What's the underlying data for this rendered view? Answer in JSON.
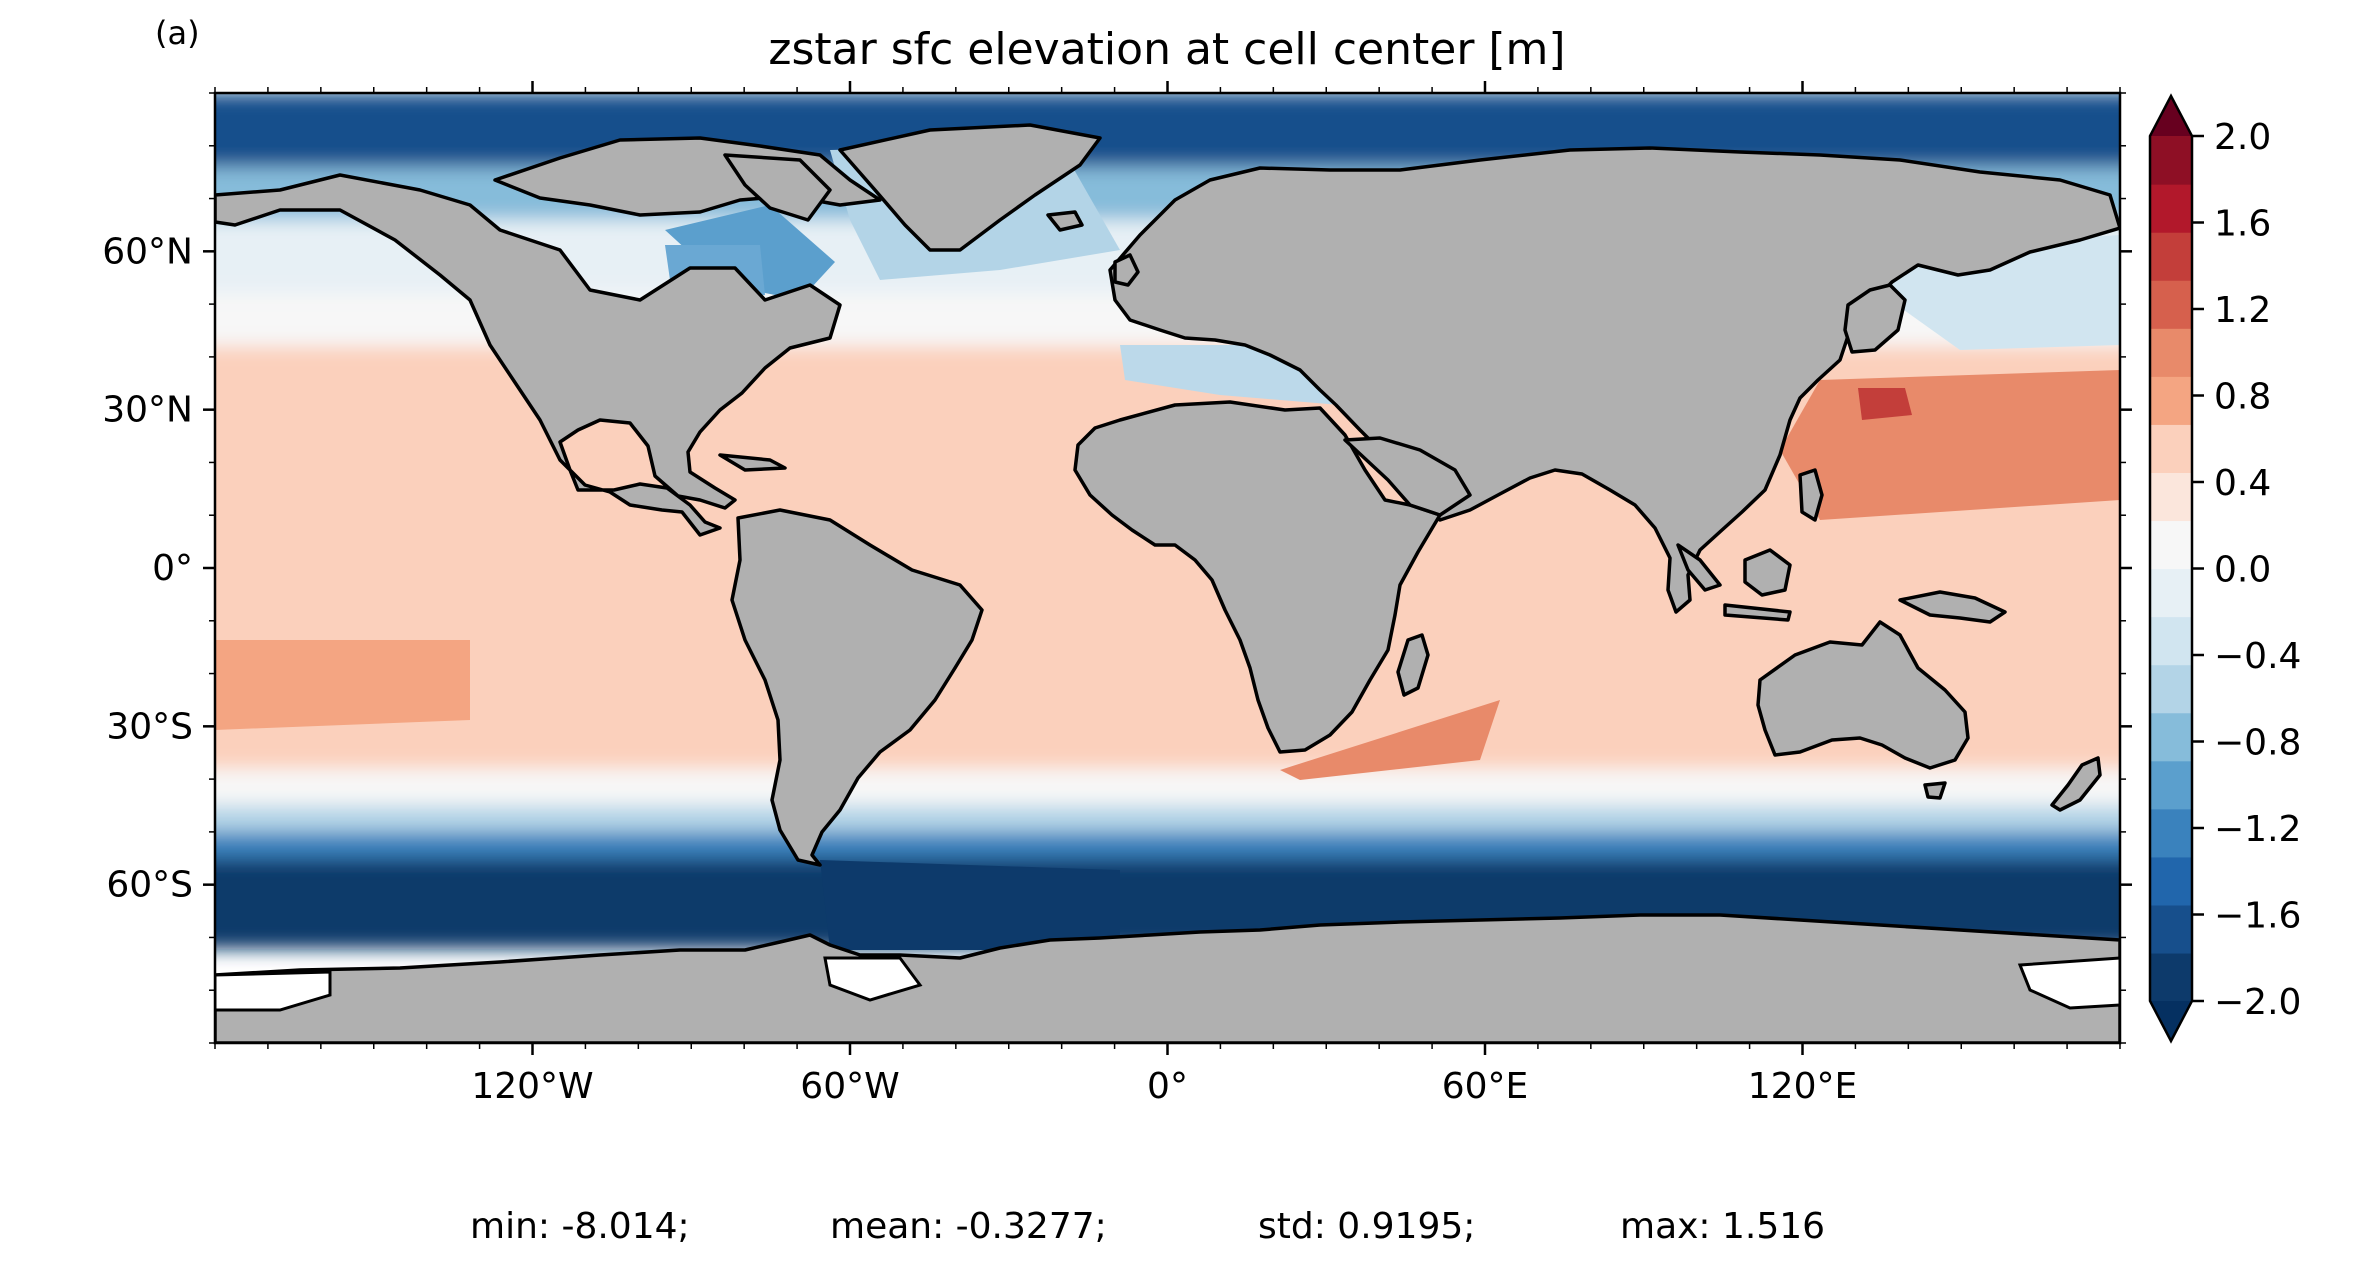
{
  "panel_label": "(a)",
  "title": "zstar sfc elevation at cell center [m]",
  "map": {
    "projection": "PlateCarree",
    "lon_range": [
      -180,
      180
    ],
    "lat_range": [
      -90,
      90
    ],
    "land_color": "#b0b0b0",
    "coastline_color": "#000000",
    "x_ticks": [
      {
        "lon": -120,
        "label": "120°W"
      },
      {
        "lon": -60,
        "label": "60°W"
      },
      {
        "lon": 0,
        "label": "0°"
      },
      {
        "lon": 60,
        "label": "60°E"
      },
      {
        "lon": 120,
        "label": "120°E"
      }
    ],
    "y_ticks": [
      {
        "lat": 60,
        "label": "60°N"
      },
      {
        "lat": 30,
        "label": "30°N"
      },
      {
        "lat": 0,
        "label": "0°"
      },
      {
        "lat": -30,
        "label": "30°S"
      },
      {
        "lat": -60,
        "label": "60°S"
      }
    ],
    "sea_level_zones": [
      {
        "lat_top": 90,
        "lat_bottom": 76,
        "level": -1.6
      },
      {
        "lat_top": 76,
        "lat_bottom": 66,
        "level": -0.7
      },
      {
        "lat_top": 66,
        "lat_bottom": 52,
        "level": -0.15
      },
      {
        "lat_top": 52,
        "lat_bottom": 42,
        "level": 0.05
      },
      {
        "lat_top": 42,
        "lat_bottom": 18,
        "level": 0.5
      },
      {
        "lat_top": 18,
        "lat_bottom": -10,
        "level": 0.45
      },
      {
        "lat_top": -10,
        "lat_bottom": -38,
        "level": 0.5
      },
      {
        "lat_top": -38,
        "lat_bottom": -45,
        "level": 0.1
      },
      {
        "lat_top": -45,
        "lat_bottom": -50,
        "level": -0.6
      },
      {
        "lat_top": -50,
        "lat_bottom": -55,
        "level": -1.2
      },
      {
        "lat_top": -55,
        "lat_bottom": -66,
        "level": -1.8
      },
      {
        "lat_top": -66,
        "lat_bottom": -72,
        "level": -2.0
      }
    ]
  },
  "colorbar": {
    "vmin": -2.0,
    "vmax": 2.0,
    "extend": "both",
    "ticks": [
      "2.0",
      "1.6",
      "1.2",
      "0.8",
      "0.4",
      "0.0",
      "−0.4",
      "−0.8",
      "−1.2",
      "−1.6",
      "−2.0"
    ],
    "levels": [
      "#0d3a6b",
      "#174f8c",
      "#2166ac",
      "#3a82bd",
      "#5b9fcd",
      "#86bcda",
      "#b3d4e7",
      "#d1e5f0",
      "#e7f0f5",
      "#f7f7f7",
      "#fbe6dc",
      "#fbd0bc",
      "#f4a582",
      "#e88a6a",
      "#d6604d",
      "#c33e3a",
      "#b2182b",
      "#8e0f25"
    ],
    "over_color": "#67001f",
    "under_color": "#053061"
  },
  "stats": {
    "min": "min: -8.014;",
    "mean": "mean: -0.3277;",
    "std": "std: 0.9195;",
    "max": "max: 1.516"
  }
}
